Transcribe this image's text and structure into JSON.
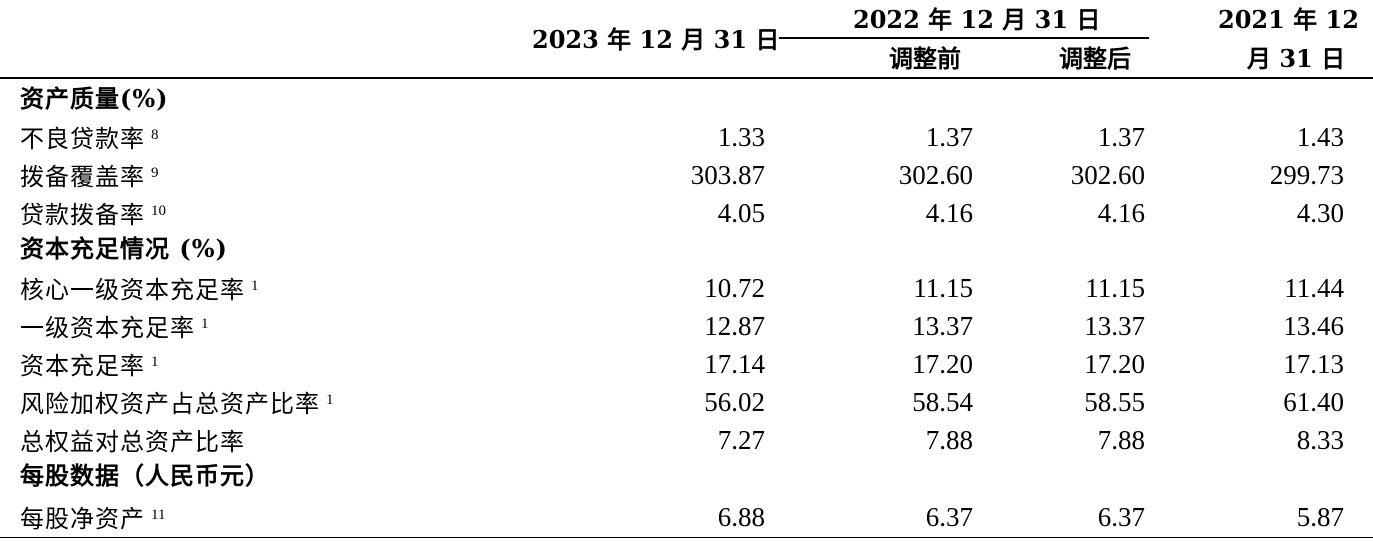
{
  "header": {
    "col2023": "2023 年 12 月 31 日",
    "col2022_group": "2022 年 12 月 31 日",
    "col2022_before": "调整前",
    "col2022_after": "调整后",
    "col2021_line1": "2021 年 12",
    "col2021_line2": "月 31 日"
  },
  "rows": [
    {
      "label": "资产质量(%)",
      "section": true
    },
    {
      "label": "不良贷款率",
      "note": "8",
      "v2023": "1.33",
      "v2022b": "1.37",
      "v2022a": "1.37",
      "v2021": "1.43"
    },
    {
      "label": "拨备覆盖率",
      "note": "9",
      "v2023": "303.87",
      "v2022b": "302.60",
      "v2022a": "302.60",
      "v2021": "299.73"
    },
    {
      "label": "贷款拨备率",
      "note": "10",
      "v2023": "4.05",
      "v2022b": "4.16",
      "v2022a": "4.16",
      "v2021": "4.30"
    },
    {
      "label": "资本充足情况 (%)",
      "section": true
    },
    {
      "label": "核心一级资本充足率",
      "note": "1",
      "v2023": "10.72",
      "v2022b": "11.15",
      "v2022a": "11.15",
      "v2021": "11.44"
    },
    {
      "label": "一级资本充足率",
      "note": "1",
      "v2023": "12.87",
      "v2022b": "13.37",
      "v2022a": "13.37",
      "v2021": "13.46"
    },
    {
      "label": "资本充足率",
      "note": "1",
      "v2023": "17.14",
      "v2022b": "17.20",
      "v2022a": "17.20",
      "v2021": "17.13"
    },
    {
      "label": "风险加权资产占总资产比率",
      "note": "1",
      "v2023": "56.02",
      "v2022b": "58.54",
      "v2022a": "58.55",
      "v2021": "61.40"
    },
    {
      "label": "总权益对总资产比率",
      "v2023": "7.27",
      "v2022b": "7.88",
      "v2022a": "7.88",
      "v2021": "8.33"
    },
    {
      "label": "每股数据（人民币元）",
      "section": true
    },
    {
      "label": "每股净资产",
      "note": "11",
      "v2023": "6.88",
      "v2022b": "6.37",
      "v2022a": "6.37",
      "v2021": "5.87"
    }
  ]
}
